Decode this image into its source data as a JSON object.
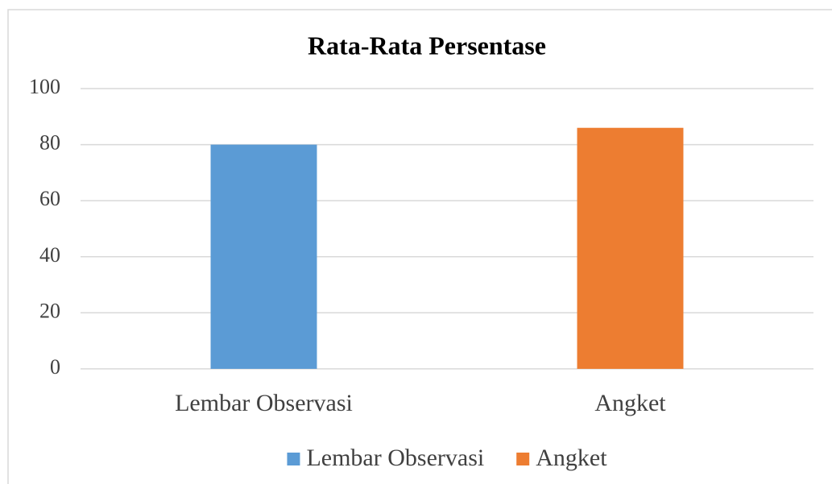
{
  "chart_data": {
    "type": "bar",
    "title": "Rata-Rata Persentase",
    "categories": [
      "Lembar Observasi",
      "Angket"
    ],
    "values": [
      80,
      86
    ],
    "colors": [
      "#5b9bd5",
      "#ed7d31"
    ],
    "ylim": [
      0,
      100
    ],
    "yticks": [
      0,
      20,
      40,
      60,
      80,
      100
    ],
    "grid": true,
    "legend": "bottom"
  }
}
